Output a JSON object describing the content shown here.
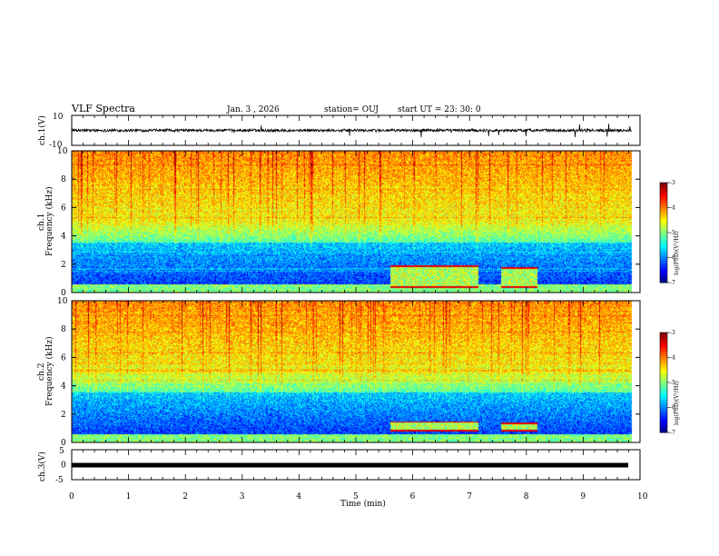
{
  "header": {
    "title": "VLF Spectra",
    "date": "Jan. 3 , 2026",
    "station": "station= OUJ",
    "start": "start UT = 23: 30: 0"
  },
  "chart_data": [
    {
      "type": "line",
      "panel": "ch1-waveform",
      "ylabel": "ch.1(V)",
      "ylim": [
        -10,
        10
      ],
      "yticks": [
        "10",
        "-10"
      ],
      "xlim": [
        0,
        10
      ],
      "description_values": {
        "baseline": 0,
        "noise_amplitude": 1.5
      }
    },
    {
      "type": "heatmap",
      "panel": "ch1-spectrogram",
      "ylabel": "ch.1\nFrequency (kHz)",
      "ylabel_lines": [
        "ch.1",
        "Frequency (kHz)"
      ],
      "ylim": [
        0,
        10
      ],
      "yticks": [
        "0",
        "2",
        "4",
        "6",
        "8",
        "10"
      ],
      "xlim": [
        0,
        10
      ],
      "data_end_min": 9.85,
      "colorbar": {
        "label": "log(PSD)(V²/Hz)",
        "range": [
          -7,
          -3
        ],
        "ticks": [
          "-3",
          "-4",
          "-5",
          "-6",
          "-7"
        ]
      },
      "events": [
        {
          "t_start": 5.6,
          "t_end": 7.15,
          "f_low": 0.3,
          "f_high": 1.9
        },
        {
          "t_start": 7.55,
          "t_end": 8.2,
          "f_low": 0.3,
          "f_high": 1.8
        }
      ]
    },
    {
      "type": "heatmap",
      "panel": "ch2-spectrogram",
      "ylabel": "ch.2\nFrequency (kHz)",
      "ylabel_lines": [
        "ch.2",
        "Frequency (kHz)"
      ],
      "ylim": [
        0,
        10
      ],
      "yticks": [
        "0",
        "2",
        "4",
        "6",
        "8",
        "10"
      ],
      "xlim": [
        0,
        10
      ],
      "data_end_min": 9.85,
      "colorbar": {
        "label": "log(PSD)(V²/Hz)",
        "range": [
          -7,
          -3
        ],
        "ticks": [
          "-3",
          "-4",
          "-5",
          "-6",
          "-7"
        ]
      },
      "events": [
        {
          "t_start": 5.6,
          "t_end": 7.15,
          "f_low": 0.8,
          "f_high": 1.5
        },
        {
          "t_start": 7.55,
          "t_end": 8.2,
          "f_low": 0.8,
          "f_high": 1.4
        }
      ]
    },
    {
      "type": "line",
      "panel": "ch3-waveform",
      "ylabel": "ch.3(V)",
      "ylim": [
        -5,
        5
      ],
      "yticks": [
        "5",
        "0",
        "-5"
      ],
      "xlim": [
        0,
        10
      ],
      "xlabel": "Time (min)",
      "xticks": [
        "0",
        "1",
        "2",
        "3",
        "4",
        "5",
        "6",
        "7",
        "8",
        "9",
        "10"
      ],
      "description_values": {
        "constant_value": 0
      }
    }
  ]
}
